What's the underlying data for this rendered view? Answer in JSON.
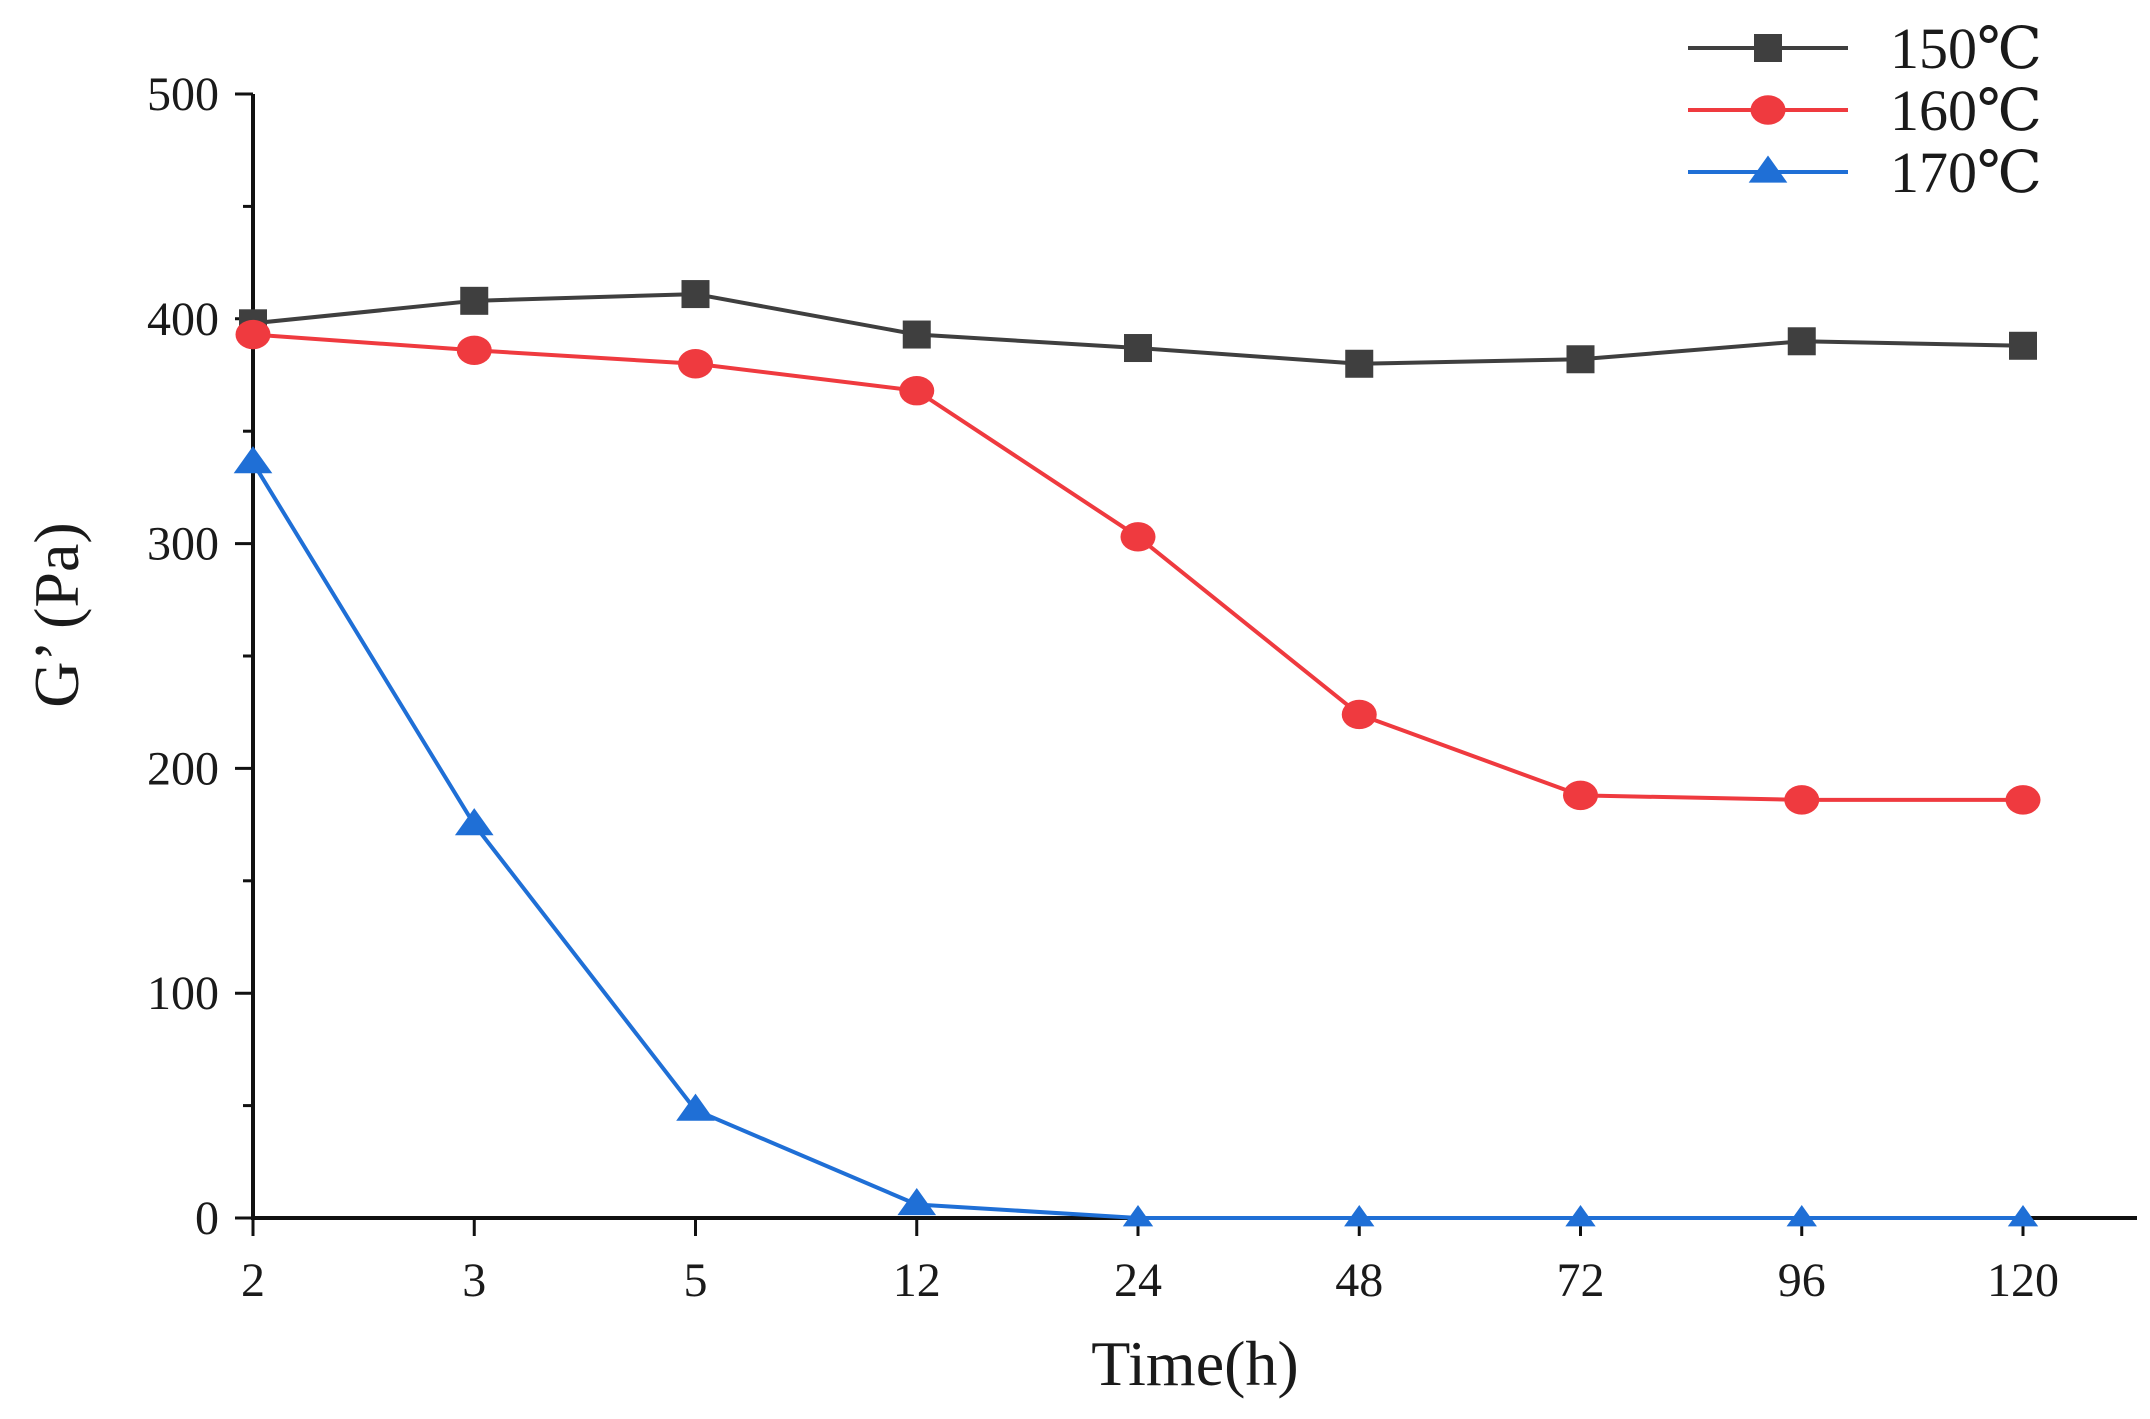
{
  "chart_data": {
    "type": "line",
    "title": "",
    "xlabel": "Time(h)",
    "ylabel": "G’ (Pa)",
    "categories": [
      "2",
      "3",
      "5",
      "12",
      "24",
      "48",
      "72",
      "96",
      "120"
    ],
    "ylim": [
      0,
      500
    ],
    "yticks": [
      "0",
      "100",
      "200",
      "300",
      "400",
      "500"
    ],
    "grid": false,
    "legend_position": "top-right",
    "series": [
      {
        "name": "150℃",
        "color": "#3f3f3f",
        "marker": "square",
        "values": [
          398,
          408,
          411,
          393,
          387,
          380,
          382,
          390,
          388
        ]
      },
      {
        "name": "160℃",
        "color": "#ef3a3f",
        "marker": "circle",
        "values": [
          393,
          386,
          380,
          368,
          303,
          224,
          188,
          186,
          186
        ]
      },
      {
        "name": "170℃",
        "color": "#1f6fd6",
        "marker": "triangle",
        "values": [
          336,
          175,
          48,
          6,
          0,
          0,
          0,
          0,
          0
        ]
      }
    ]
  }
}
